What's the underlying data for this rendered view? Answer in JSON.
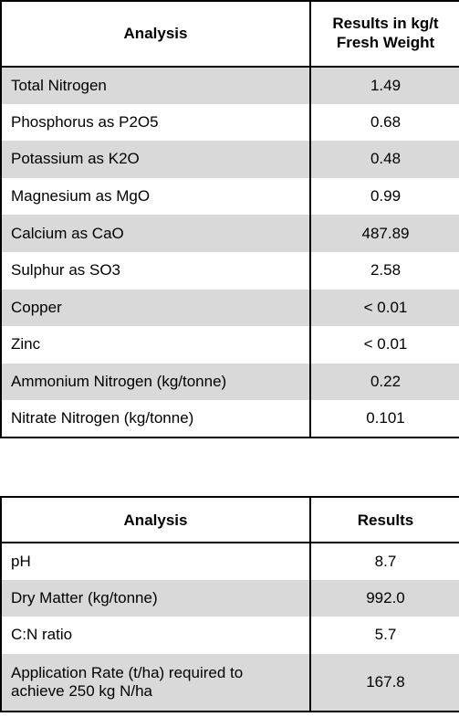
{
  "table1": {
    "headers": [
      "Analysis",
      "Results in kg/t Fresh Weight"
    ],
    "rows": [
      {
        "analysis": "Total Nitrogen",
        "result": "1.49"
      },
      {
        "analysis": "Phosphorus as P2O5",
        "result": "0.68"
      },
      {
        "analysis": "Potassium as K2O",
        "result": "0.48"
      },
      {
        "analysis": "Magnesium as MgO",
        "result": "0.99"
      },
      {
        "analysis": "Calcium as CaO",
        "result": "487.89"
      },
      {
        "analysis": "Sulphur as SO3",
        "result": "2.58"
      },
      {
        "analysis": "Copper",
        "result": "< 0.01"
      },
      {
        "analysis": "Zinc",
        "result": "< 0.01"
      },
      {
        "analysis": "Ammonium Nitrogen (kg/tonne)",
        "result": "0.22"
      },
      {
        "analysis": "Nitrate Nitrogen (kg/tonne)",
        "result": "0.101"
      }
    ]
  },
  "table2": {
    "headers": [
      "Analysis",
      "Results"
    ],
    "rows": [
      {
        "analysis": "pH",
        "result": "8.7"
      },
      {
        "analysis": "Dry Matter (kg/tonne)",
        "result": "992.0"
      },
      {
        "analysis": "C:N ratio",
        "result": "5.7"
      },
      {
        "analysis": "Application Rate (t/ha) required to achieve 250 kg N/ha",
        "result": "167.8"
      }
    ]
  }
}
